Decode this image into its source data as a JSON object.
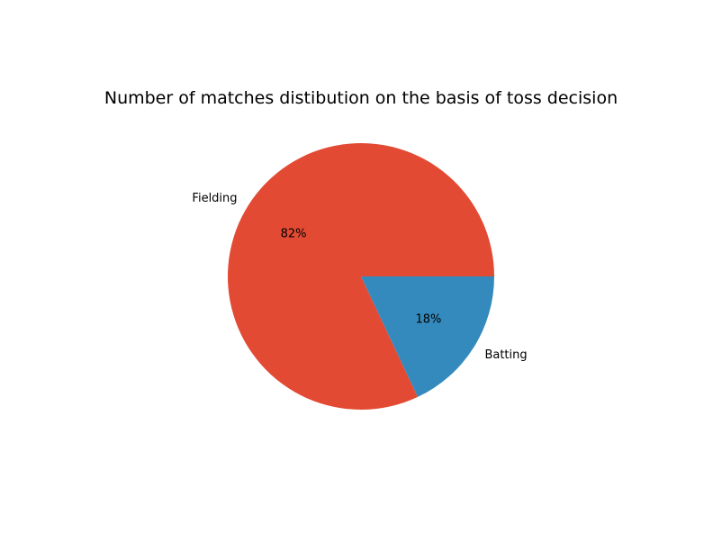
{
  "chart_data": {
    "type": "pie",
    "title": "Number of matches distibution on the basis of toss decision",
    "categories": [
      "Fielding",
      "Batting"
    ],
    "values": [
      82,
      18
    ],
    "percent_labels": [
      "82%",
      "18%"
    ],
    "colors": [
      "#E24A33",
      "#348ABD"
    ]
  }
}
